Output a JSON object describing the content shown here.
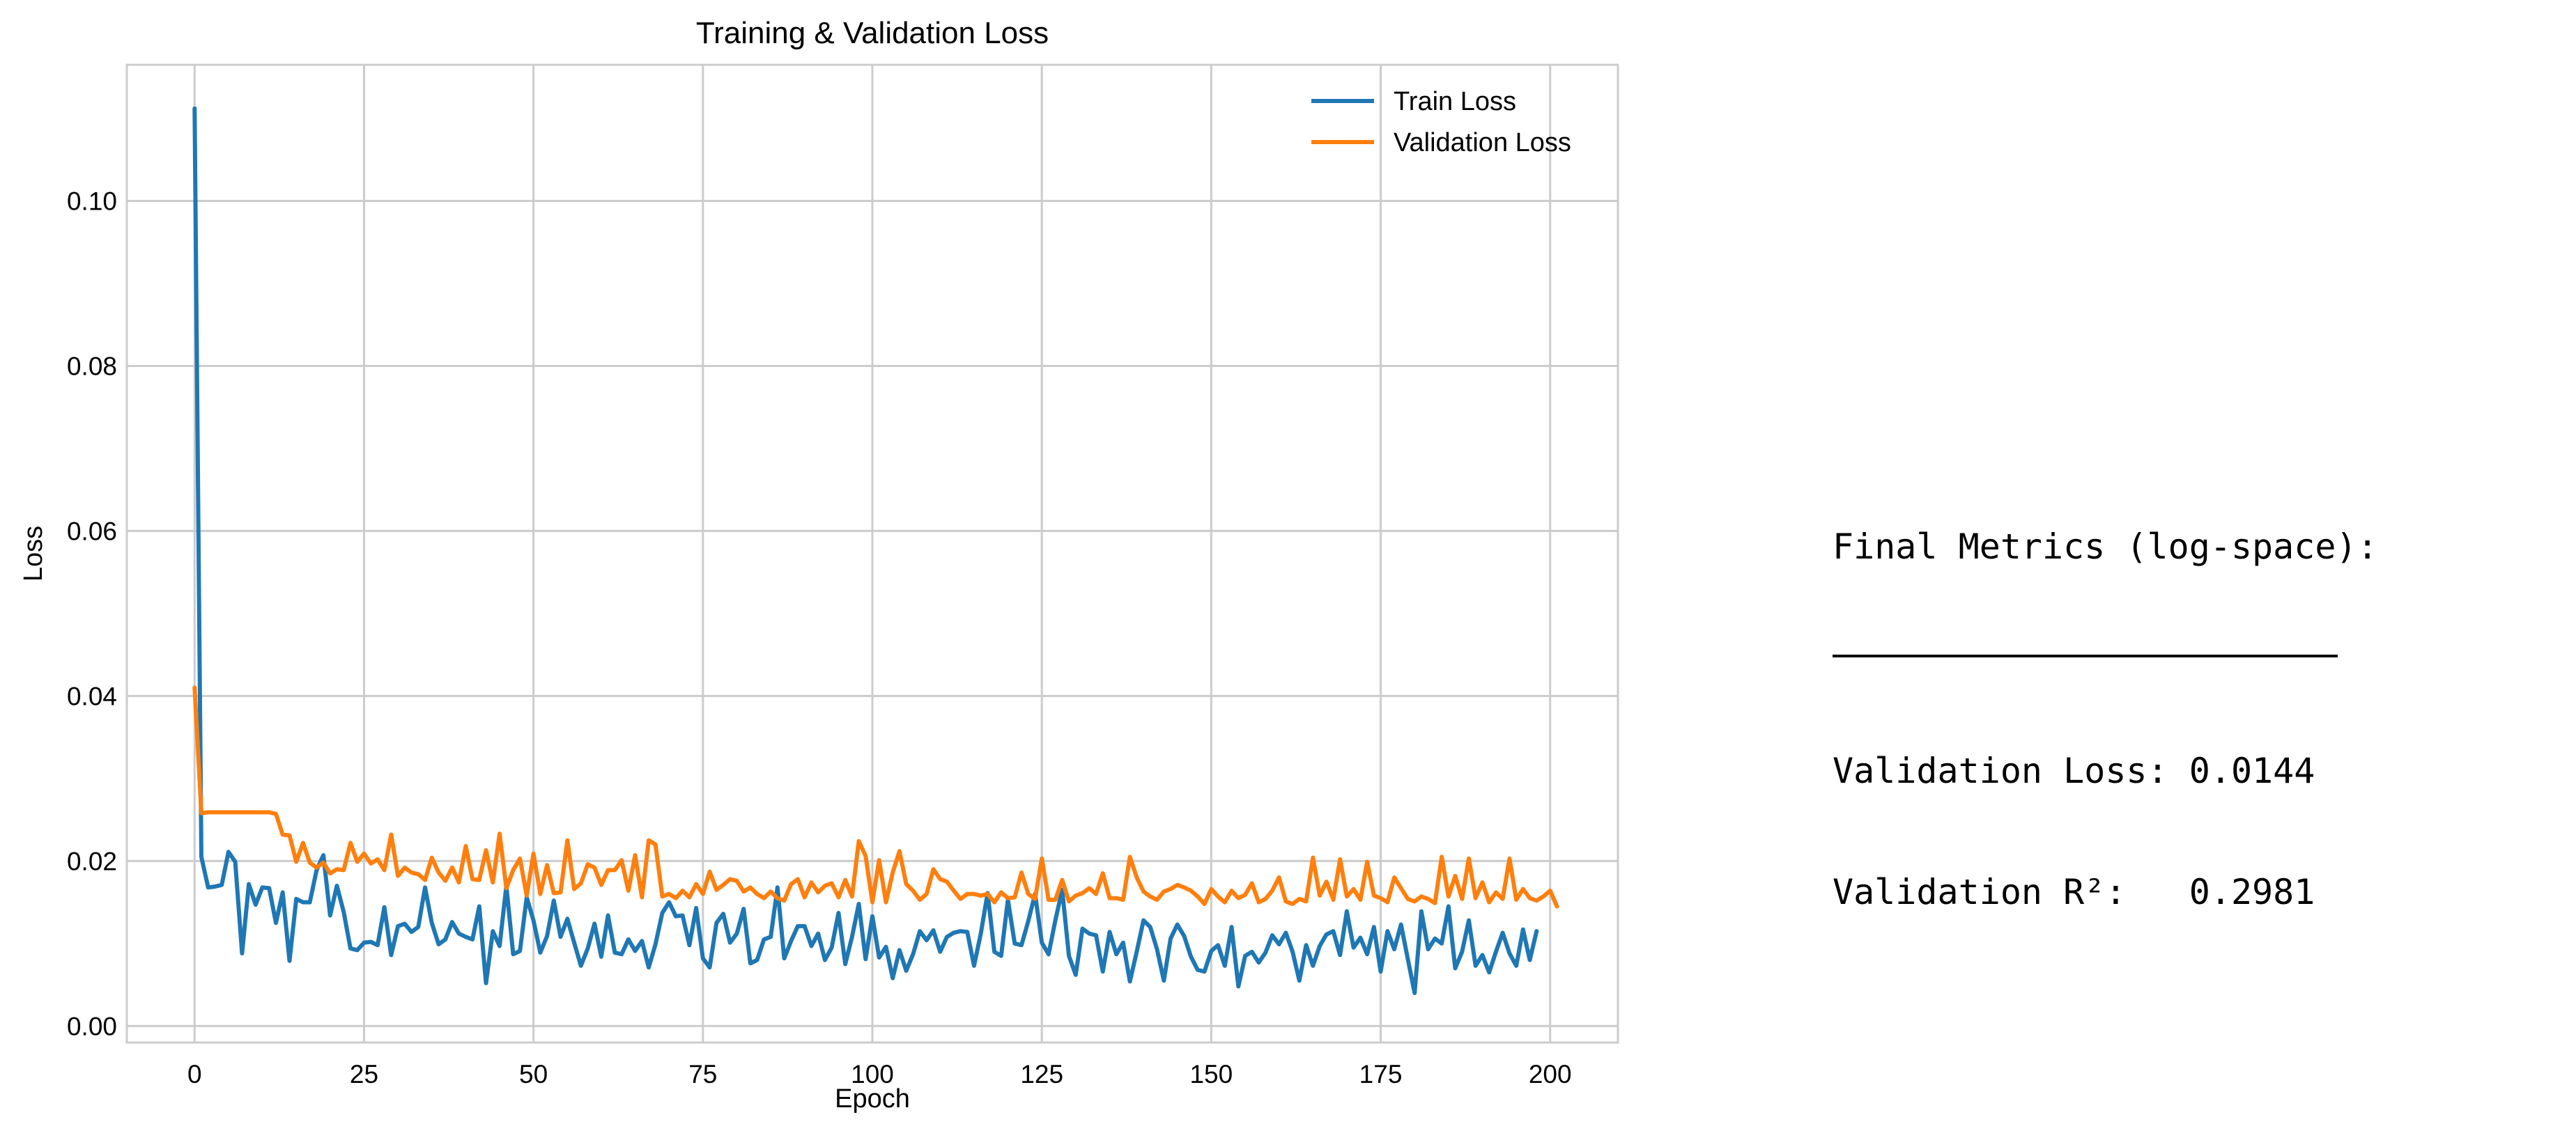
{
  "chart_data": {
    "type": "line",
    "title": "Training & Validation Loss",
    "xlabel": "Epoch",
    "ylabel": "Loss",
    "xlim": [
      -10,
      210
    ],
    "ylim": [
      -0.002,
      0.1165
    ],
    "xticks": [
      0,
      25,
      50,
      75,
      100,
      125,
      150,
      175,
      200
    ],
    "xtick_labels": [
      "0",
      "25",
      "50",
      "75",
      "100",
      "125",
      "150",
      "175",
      "200"
    ],
    "yticks": [
      0.0,
      0.02,
      0.04,
      0.06,
      0.08,
      0.1
    ],
    "ytick_labels": [
      "0.00",
      "0.02",
      "0.04",
      "0.06",
      "0.08",
      "0.10"
    ],
    "grid": true,
    "legend_position": "top-right",
    "series": [
      {
        "name": "Train Loss",
        "color": "#1f77b4",
        "values": [
          0.1112,
          0.0205,
          0.0168,
          0.0169,
          0.0171,
          0.0211,
          0.0199,
          0.0088,
          0.0172,
          0.0147,
          0.0168,
          0.0167,
          0.0125,
          0.0162,
          0.0079,
          0.0154,
          0.015,
          0.015,
          0.0189,
          0.0207,
          0.0134,
          0.017,
          0.0138,
          0.0094,
          0.0092,
          0.0101,
          0.0102,
          0.0098,
          0.0144,
          0.0086,
          0.0121,
          0.0124,
          0.0114,
          0.012,
          0.0168,
          0.0125,
          0.0099,
          0.0105,
          0.0126,
          0.0112,
          0.0108,
          0.0105,
          0.0145,
          0.0052,
          0.0115,
          0.0097,
          0.017,
          0.0087,
          0.0091,
          0.0156,
          0.0128,
          0.0089,
          0.0109,
          0.0152,
          0.0108,
          0.013,
          0.0101,
          0.0073,
          0.0094,
          0.0124,
          0.0084,
          0.0134,
          0.0089,
          0.0087,
          0.0105,
          0.0091,
          0.0103,
          0.0071,
          0.0099,
          0.0137,
          0.015,
          0.0133,
          0.0134,
          0.0098,
          0.0143,
          0.0082,
          0.0071,
          0.0125,
          0.0136,
          0.0101,
          0.0112,
          0.0142,
          0.0076,
          0.008,
          0.0105,
          0.0108,
          0.0168,
          0.0082,
          0.0103,
          0.0121,
          0.0121,
          0.0097,
          0.0112,
          0.008,
          0.0095,
          0.0137,
          0.0075,
          0.0108,
          0.0148,
          0.0081,
          0.0133,
          0.0083,
          0.0096,
          0.0058,
          0.0092,
          0.0067,
          0.0087,
          0.0115,
          0.0104,
          0.0116,
          0.009,
          0.0108,
          0.0113,
          0.0115,
          0.0114,
          0.0073,
          0.0112,
          0.0161,
          0.009,
          0.0085,
          0.0153,
          0.01,
          0.0098,
          0.0127,
          0.016,
          0.0101,
          0.0087,
          0.0128,
          0.0165,
          0.0085,
          0.0062,
          0.0118,
          0.0112,
          0.011,
          0.0066,
          0.0114,
          0.0087,
          0.0101,
          0.0054,
          0.009,
          0.0128,
          0.012,
          0.0093,
          0.0055,
          0.0106,
          0.0123,
          0.0109,
          0.0084,
          0.0068,
          0.0066,
          0.0091,
          0.0098,
          0.0073,
          0.012,
          0.0048,
          0.0085,
          0.009,
          0.0077,
          0.0089,
          0.011,
          0.0099,
          0.0113,
          0.009,
          0.0055,
          0.0098,
          0.0073,
          0.0097,
          0.0111,
          0.0115,
          0.0086,
          0.0139,
          0.0095,
          0.0107,
          0.0087,
          0.012,
          0.0066,
          0.0115,
          0.0093,
          0.0123,
          0.0081,
          0.004,
          0.0139,
          0.0093,
          0.0106,
          0.01,
          0.0145,
          0.007,
          0.009,
          0.0128,
          0.0073,
          0.0086,
          0.0065,
          0.009,
          0.0113,
          0.0088,
          0.0073,
          0.0117,
          0.008,
          0.0115
        ]
      },
      {
        "name": "Validation Loss",
        "color": "#ff7f0e",
        "values": [
          0.041,
          0.0258,
          0.0259,
          0.0259,
          0.0259,
          0.0259,
          0.0259,
          0.0259,
          0.0259,
          0.0259,
          0.0259,
          0.0259,
          0.0257,
          0.0232,
          0.0231,
          0.0199,
          0.0222,
          0.0198,
          0.0192,
          0.0198,
          0.0185,
          0.019,
          0.0189,
          0.0222,
          0.0199,
          0.0209,
          0.0197,
          0.0202,
          0.0189,
          0.0232,
          0.0182,
          0.0192,
          0.0186,
          0.0184,
          0.0177,
          0.0204,
          0.0186,
          0.0176,
          0.0192,
          0.0174,
          0.0218,
          0.0178,
          0.0177,
          0.0213,
          0.0174,
          0.0233,
          0.0167,
          0.0189,
          0.0203,
          0.0158,
          0.0209,
          0.016,
          0.0195,
          0.0161,
          0.0162,
          0.0225,
          0.0166,
          0.0173,
          0.0196,
          0.0192,
          0.0171,
          0.0189,
          0.0189,
          0.0201,
          0.0164,
          0.0207,
          0.0156,
          0.0225,
          0.022,
          0.0157,
          0.016,
          0.0155,
          0.0164,
          0.0156,
          0.0172,
          0.016,
          0.0187,
          0.0165,
          0.0171,
          0.0178,
          0.0176,
          0.0163,
          0.0168,
          0.016,
          0.0155,
          0.0163,
          0.0155,
          0.0152,
          0.0172,
          0.0178,
          0.0156,
          0.0174,
          0.0162,
          0.017,
          0.0173,
          0.0156,
          0.0177,
          0.0157,
          0.0224,
          0.0206,
          0.015,
          0.0201,
          0.015,
          0.0186,
          0.0212,
          0.0172,
          0.0164,
          0.0153,
          0.016,
          0.019,
          0.0178,
          0.0175,
          0.0164,
          0.0154,
          0.016,
          0.016,
          0.0158,
          0.016,
          0.015,
          0.0162,
          0.0155,
          0.0156,
          0.0186,
          0.016,
          0.0154,
          0.0203,
          0.0153,
          0.0153,
          0.0177,
          0.0151,
          0.0158,
          0.0161,
          0.0167,
          0.016,
          0.0185,
          0.0155,
          0.0155,
          0.0153,
          0.0205,
          0.018,
          0.0163,
          0.0157,
          0.0153,
          0.0163,
          0.0166,
          0.0171,
          0.0168,
          0.0164,
          0.0157,
          0.0148,
          0.0166,
          0.0157,
          0.015,
          0.0164,
          0.0155,
          0.0159,
          0.0173,
          0.015,
          0.0154,
          0.0164,
          0.018,
          0.0151,
          0.0148,
          0.0154,
          0.0151,
          0.0204,
          0.0158,
          0.0175,
          0.0153,
          0.0202,
          0.0157,
          0.0166,
          0.0153,
          0.0199,
          0.0158,
          0.0155,
          0.015,
          0.018,
          0.0167,
          0.0154,
          0.0151,
          0.0157,
          0.0154,
          0.0149,
          0.0205,
          0.0157,
          0.0182,
          0.0154,
          0.0203,
          0.0155,
          0.0174,
          0.015,
          0.0162,
          0.0154,
          0.0203,
          0.0153,
          0.0166,
          0.0155,
          0.0152,
          0.0157,
          0.0164,
          0.0145
        ]
      }
    ]
  },
  "metrics": {
    "heading": "Final Metrics (log-space):",
    "line1": "Validation Loss: 0.0144",
    "line2": "Validation R²:   0.2981"
  }
}
